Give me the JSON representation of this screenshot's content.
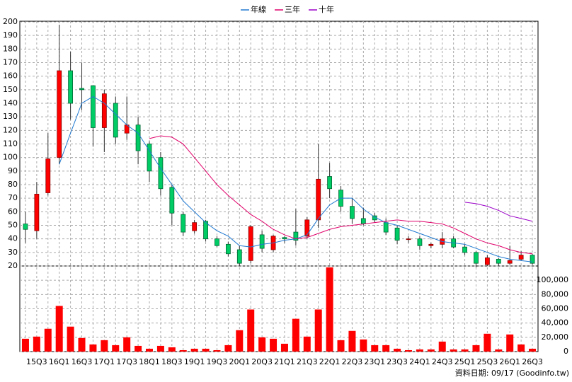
{
  "chart_data": {
    "type": "candlestick",
    "legend": [
      "年線",
      "三年",
      "十年"
    ],
    "source": "資料日期: 09/17 (Goodinfo.tw)",
    "categories": [
      null,
      "15Q3",
      null,
      "16Q1",
      null,
      "16Q3",
      null,
      "17Q1",
      null,
      "17Q3",
      null,
      "18Q1",
      null,
      "18Q3",
      null,
      "19Q1",
      null,
      "19Q3",
      null,
      "20Q1",
      null,
      "20Q3",
      null,
      "21Q1",
      null,
      "21Q3",
      null,
      "22Q1",
      null,
      "22Q3",
      null,
      "23Q1",
      null,
      "23Q3",
      null,
      "24Q1",
      null,
      "24Q3",
      null,
      "25Q1",
      null,
      "25Q3",
      null,
      "26Q1",
      null,
      "26Q3"
    ],
    "open": [
      51,
      46,
      74,
      100,
      164,
      151,
      153,
      122,
      140,
      118,
      124,
      110,
      100,
      78,
      58,
      46,
      53,
      40,
      36,
      32,
      24,
      43,
      32,
      41,
      45,
      42,
      54,
      86,
      76,
      64,
      55,
      57,
      52,
      48,
      40,
      40,
      35,
      36,
      40,
      34,
      30,
      21,
      25,
      22,
      25,
      28
    ],
    "high": [
      60,
      82,
      118,
      198,
      178,
      170,
      152,
      150,
      145,
      145,
      130,
      112,
      104,
      80,
      60,
      54,
      54,
      42,
      38,
      35,
      50,
      46,
      43,
      42,
      62,
      56,
      110,
      96,
      79,
      70,
      63,
      59,
      55,
      50,
      42,
      42,
      37,
      45,
      42,
      36,
      31,
      28,
      26,
      35,
      31,
      29
    ],
    "low": [
      37,
      40,
      72,
      95,
      128,
      135,
      108,
      104,
      110,
      113,
      95,
      82,
      72,
      50,
      42,
      44,
      38,
      34,
      27,
      20,
      22,
      30,
      30,
      37,
      35,
      40,
      48,
      70,
      60,
      51,
      50,
      52,
      43,
      36,
      37,
      32,
      33,
      33,
      33,
      28,
      19,
      20,
      20,
      21,
      24,
      21
    ],
    "close": [
      47,
      73,
      99,
      164,
      140,
      150,
      122,
      147,
      115,
      124,
      105,
      90,
      77,
      59,
      45,
      52,
      40,
      35,
      29,
      22,
      49,
      33,
      42,
      40,
      39,
      54,
      84,
      77,
      64,
      55,
      51,
      54,
      45,
      39,
      40,
      35,
      36,
      40,
      34,
      30,
      22,
      26,
      22,
      24,
      28,
      22
    ],
    "up_color": "#ff0000",
    "down_color": "#00cc66",
    "lines": [
      {
        "name": "年線",
        "color": "#1f78d0",
        "values": [
          null,
          null,
          null,
          95,
          118,
          140,
          145,
          140,
          132,
          124,
          118,
          105,
          92,
          80,
          68,
          60,
          52,
          46,
          42,
          35,
          34,
          36,
          37,
          39,
          40,
          43,
          55,
          65,
          70,
          70,
          62,
          56,
          52,
          50,
          47,
          44,
          41,
          38,
          37,
          36,
          33,
          30,
          27,
          25,
          24,
          23
        ]
      },
      {
        "name": "三年",
        "color": "#e0006a",
        "values": [
          null,
          null,
          null,
          null,
          null,
          null,
          null,
          null,
          null,
          null,
          null,
          114,
          116,
          115,
          110,
          100,
          90,
          80,
          72,
          65,
          58,
          53,
          47,
          43,
          40,
          41,
          44,
          47,
          49,
          50,
          51,
          52,
          53,
          54,
          53,
          53,
          52,
          51,
          48,
          44,
          40,
          37,
          35,
          32,
          30,
          29
        ]
      },
      {
        "name": "十年",
        "color": "#9b00c8",
        "values": [
          null,
          null,
          null,
          null,
          null,
          null,
          null,
          null,
          null,
          null,
          null,
          null,
          null,
          null,
          null,
          null,
          null,
          null,
          null,
          null,
          null,
          null,
          null,
          null,
          null,
          null,
          null,
          null,
          null,
          null,
          null,
          null,
          null,
          null,
          null,
          null,
          null,
          null,
          null,
          67,
          66,
          64,
          61,
          57,
          55,
          53
        ]
      }
    ],
    "ylim": [
      20,
      200
    ],
    "yticks": [
      20,
      30,
      40,
      50,
      60,
      70,
      80,
      90,
      100,
      110,
      120,
      130,
      140,
      150,
      160,
      170,
      180,
      190,
      200
    ],
    "volume": {
      "color": "#ff0000",
      "ylim": [
        0,
        120000
      ],
      "yticks": [
        0,
        {
          "value": 20000,
          "label": "20,000"
        },
        {
          "value": 40000,
          "label": "40,000"
        },
        {
          "value": 60000,
          "label": "60,000"
        },
        {
          "value": 80000,
          "label": "80,000"
        },
        {
          "value": 100000,
          "label": "100,000"
        }
      ],
      "values": [
        18000,
        21000,
        32000,
        64000,
        35000,
        19000,
        10000,
        16000,
        9000,
        20000,
        8000,
        4000,
        8000,
        6000,
        2000,
        4000,
        4000,
        2000,
        9000,
        30000,
        59000,
        20000,
        18000,
        11000,
        46000,
        21000,
        59000,
        118000,
        16000,
        29000,
        17000,
        9000,
        9000,
        4000,
        2000,
        3000,
        3000,
        14000,
        3000,
        3000,
        9000,
        25000,
        3000,
        24000,
        10000,
        4000
      ]
    },
    "grid": true
  }
}
